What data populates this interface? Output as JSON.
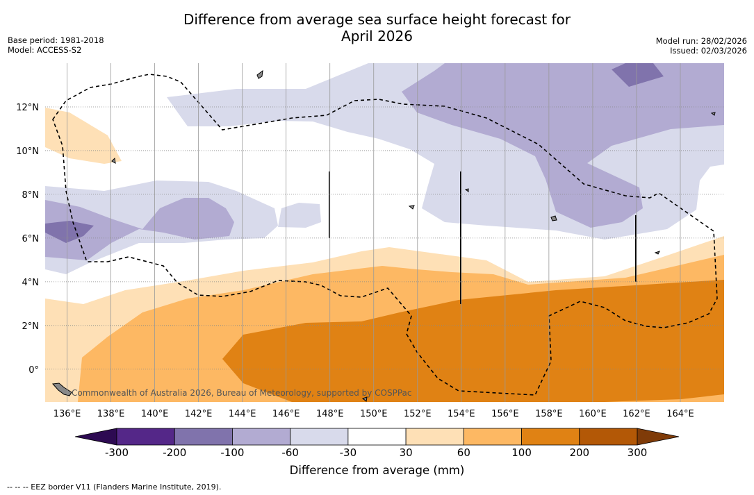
{
  "header": {
    "title_line1": "Difference from average sea surface height forecast for",
    "title_line2": "April 2026",
    "base_period": "Base period: 1981-2018",
    "model": "Model: ACCESS-S2",
    "model_run": "Model run: 28/02/2026",
    "issued": "Issued: 02/03/2026"
  },
  "map": {
    "x_ticks": [
      "136°E",
      "138°E",
      "140°E",
      "142°E",
      "144°E",
      "146°E",
      "148°E",
      "150°E",
      "152°E",
      "154°E",
      "156°E",
      "158°E",
      "160°E",
      "162°E",
      "164°E"
    ],
    "x_tick_values": [
      136,
      138,
      140,
      142,
      144,
      146,
      148,
      150,
      152,
      154,
      156,
      158,
      160,
      162,
      164
    ],
    "y_ticks": [
      "0°",
      "2°N",
      "4°N",
      "6°N",
      "8°N",
      "10°N",
      "12°N"
    ],
    "y_tick_values": [
      0,
      2,
      4,
      6,
      8,
      10,
      12
    ],
    "lon_range": [
      135,
      166
    ],
    "lat_range": [
      -1.5,
      14
    ],
    "attribution": "Commonwealth of Australia 2026, Bureau of Meteorology, supported by COSPPac"
  },
  "colorbar": {
    "ticks": [
      "-300",
      "-200",
      "-100",
      "-60",
      "-30",
      "30",
      "60",
      "100",
      "200",
      "300"
    ],
    "colors": [
      "#2d0a52",
      "#542788",
      "#8073ac",
      "#b2abd2",
      "#d8daeb",
      "#ffffff",
      "#fee0b6",
      "#fdb863",
      "#e08214",
      "#b35806",
      "#7f3b08"
    ],
    "label": "Difference from average (mm)"
  },
  "footnote": "--  --  -- EEZ border V11 (Flanders Marine Institute, 2019)."
}
